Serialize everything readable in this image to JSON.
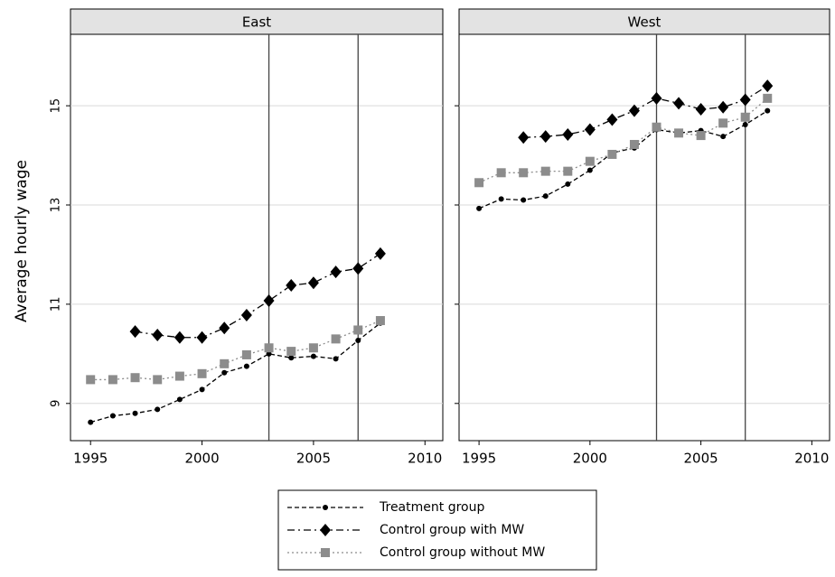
{
  "chart_data": {
    "type": "line",
    "ylabel": "Average hourly wage",
    "xlim": [
      1994.1,
      2010.8
    ],
    "xticks": [
      1995,
      2000,
      2005,
      2010
    ],
    "ylim": [
      8.25,
      16.44
    ],
    "yticks": [
      9,
      11,
      13,
      15
    ],
    "grid": true,
    "vlines": [
      2003,
      2007
    ],
    "legend": [
      {
        "name": "Treatment group",
        "color": "#000000",
        "marker": "circle",
        "dash": "5,3"
      },
      {
        "name": "Control group with MW",
        "color": "#000000",
        "marker": "diamond",
        "dash": "8,4,2,4"
      },
      {
        "name": "Control group without MW",
        "color": "#8c8c8c",
        "marker": "square",
        "dash": "2,3"
      }
    ],
    "panels": [
      {
        "title": "East",
        "x": [
          1995,
          1996,
          1997,
          1998,
          1999,
          2000,
          2001,
          2002,
          2003,
          2004,
          2005,
          2006,
          2007,
          2008
        ],
        "series": [
          {
            "values": [
              8.62,
              8.75,
              8.8,
              8.88,
              9.08,
              9.28,
              9.62,
              9.75,
              10.0,
              9.92,
              9.95,
              9.9,
              10.27,
              10.62
            ]
          },
          {
            "values": [
              null,
              null,
              10.45,
              10.38,
              10.33,
              10.33,
              10.52,
              10.78,
              11.07,
              11.38,
              11.43,
              11.65,
              11.72,
              12.02
            ]
          },
          {
            "values": [
              9.48,
              9.48,
              9.52,
              9.48,
              9.55,
              9.6,
              9.8,
              9.98,
              10.12,
              10.05,
              10.12,
              10.3,
              10.48,
              10.67
            ]
          }
        ]
      },
      {
        "title": "West",
        "x": [
          1995,
          1996,
          1997,
          1998,
          1999,
          2000,
          2001,
          2002,
          2003,
          2004,
          2005,
          2006,
          2007,
          2008
        ],
        "series": [
          {
            "values": [
              12.93,
              13.12,
              13.1,
              13.18,
              13.42,
              13.7,
              14.05,
              14.15,
              14.52,
              14.45,
              14.5,
              14.38,
              14.62,
              14.9
            ]
          },
          {
            "values": [
              null,
              null,
              14.36,
              14.38,
              14.42,
              14.52,
              14.72,
              14.9,
              15.15,
              15.05,
              14.93,
              14.97,
              15.12,
              15.4
            ]
          },
          {
            "values": [
              13.45,
              13.65,
              13.65,
              13.68,
              13.68,
              13.88,
              14.02,
              14.22,
              14.57,
              14.45,
              14.4,
              14.65,
              14.77,
              15.15
            ]
          }
        ]
      }
    ]
  }
}
